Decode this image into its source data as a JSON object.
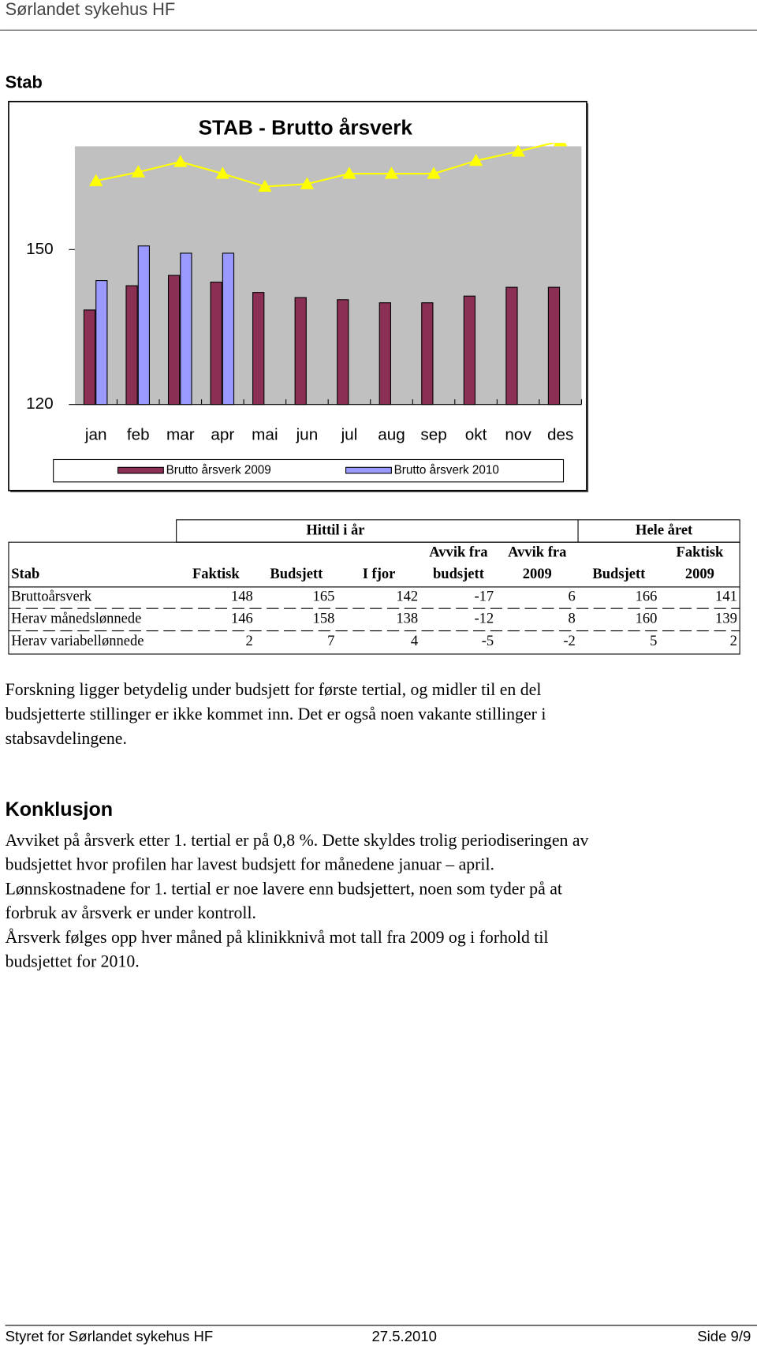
{
  "header": {
    "title": "Sørlandet sykehus HF"
  },
  "section_title": "Stab",
  "chart_data": {
    "type": "bar",
    "title": "STAB - Brutto årsverk",
    "categories": [
      "jan",
      "feb",
      "mar",
      "apr",
      "mai",
      "jun",
      "jul",
      "aug",
      "sep",
      "okt",
      "nov",
      "des"
    ],
    "series": [
      {
        "name": "Brutto årsverk 2009",
        "color": "#8b2f55",
        "values": [
          138.3,
          143,
          145,
          143.7,
          141.7,
          140.7,
          140.3,
          139.7,
          139.7,
          141,
          142.7,
          142.7
        ]
      },
      {
        "name": "Brutto årsverk 2010",
        "color": "#9999ff",
        "values": [
          144,
          150.7,
          149.3,
          149.3,
          null,
          null,
          null,
          null,
          null,
          null,
          null,
          null
        ]
      },
      {
        "type": "line",
        "color": "#ffff00",
        "values": [
          163.3,
          165,
          167,
          164.7,
          162.2,
          162.7,
          164.7,
          164.7,
          164.7,
          167.2,
          169,
          171
        ]
      }
    ],
    "ylim": [
      120,
      170
    ],
    "yticks": [
      120,
      150
    ],
    "background": "#c0c0c0"
  },
  "table": {
    "group_headers": [
      "Hittil i år",
      "Hele året"
    ],
    "columns": [
      [
        "Stab"
      ],
      [
        "Faktisk"
      ],
      [
        "Budsjett"
      ],
      [
        "I fjor"
      ],
      [
        "Avvik fra",
        "budsjett"
      ],
      [
        "Avvik fra",
        "2009"
      ],
      [
        "Budsjett"
      ],
      [
        "Faktisk",
        "2009"
      ]
    ],
    "rows": [
      [
        "Bruttoårsverk",
        148,
        165,
        142,
        -17,
        6,
        166,
        141
      ],
      [
        "Herav månedslønnede",
        146,
        158,
        138,
        -12,
        8,
        160,
        139
      ],
      [
        "Herav variabellønnede",
        2,
        7,
        4,
        -5,
        -2,
        5,
        2
      ]
    ]
  },
  "paragraph1": [
    "Forskning ligger betydelig under budsjett for første tertial, og midler til en del",
    "budsjetterte stillinger er ikke kommet inn. Det er også noen vakante stillinger i",
    "stabsavdelingene."
  ],
  "conclusion_title": "Konklusjon",
  "paragraph2": [
    "Avviket på årsverk etter 1. tertial er på 0,8 %. Dette skyldes trolig periodiseringen av",
    "budsjettet hvor profilen har lavest budsjett for månedene januar – april.",
    "Lønnskostnadene for 1. tertial er noe lavere enn budsjettert, noen som tyder på at",
    "forbruk av årsverk er under kontroll.",
    "Årsverk følges opp hver måned på klinikknivå mot tall fra 2009 og i forhold til",
    "budsjettet for 2010."
  ],
  "footer": {
    "left": "Styret for Sørlandet sykehus HF",
    "center": "27.5.2010",
    "right": "Side 9/9"
  }
}
